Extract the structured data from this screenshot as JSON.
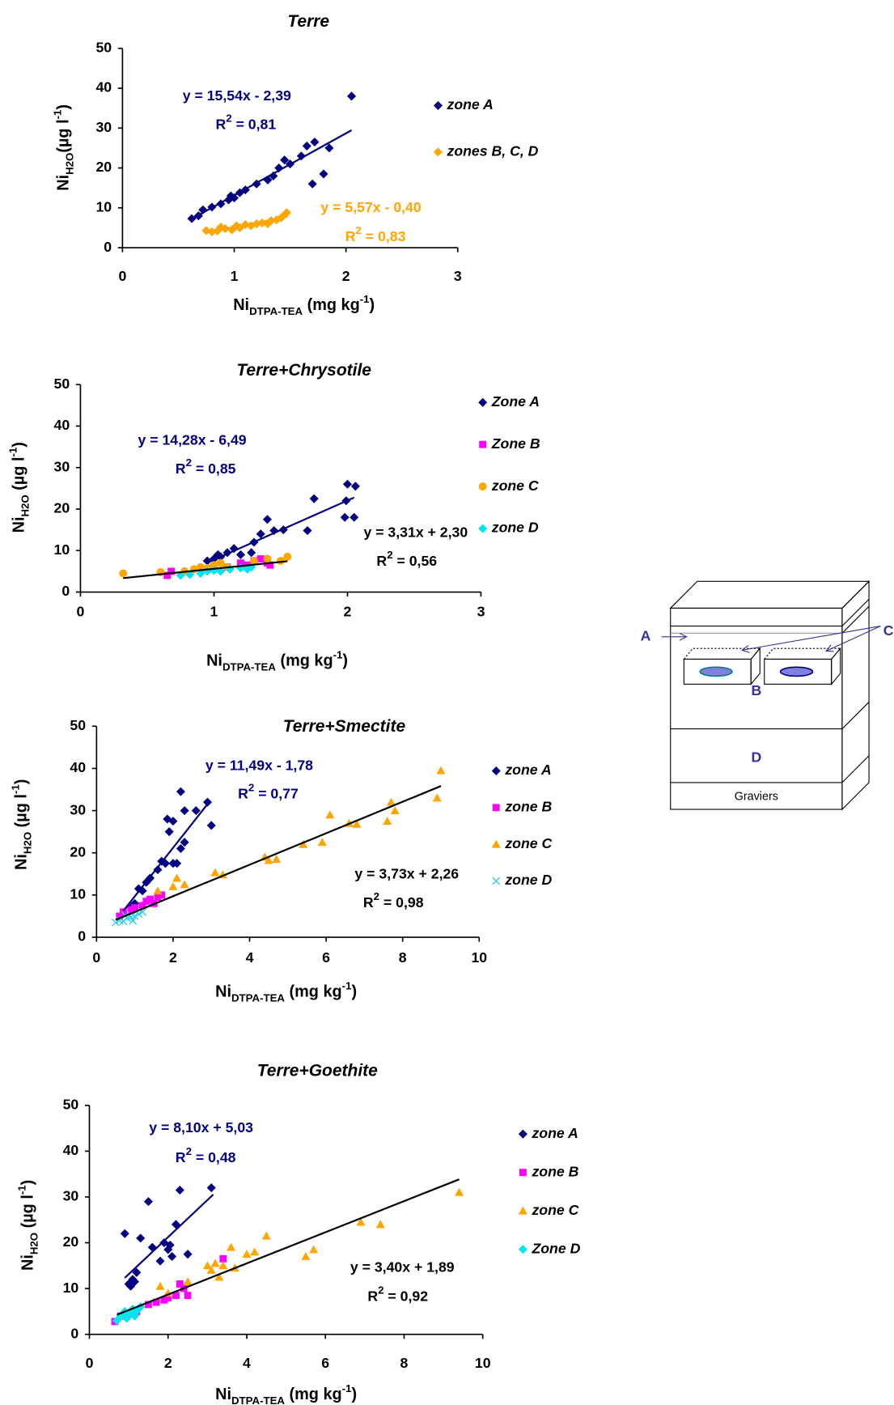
{
  "chart_data": [
    {
      "type": "scatter",
      "title": "Terre",
      "x_label": {
        "main": "Ni",
        "sub": "DTPA-TEA",
        "unit": " (mg kg",
        "sup": "-1",
        "close": ")"
      },
      "y_label": {
        "main": "Ni",
        "sub": "H2O",
        "unit": "(µg l",
        "sup": "-1",
        "close": ")"
      },
      "xlim": [
        0,
        3
      ],
      "xticks": [
        0,
        1,
        2,
        3
      ],
      "ylim": [
        0,
        50
      ],
      "yticks": [
        0,
        10,
        20,
        30,
        40,
        50
      ],
      "legend": "right",
      "series": [
        {
          "name": "zone A",
          "color": "#000080",
          "marker": "diamond",
          "x": [
            0.62,
            0.68,
            0.72,
            0.8,
            0.88,
            0.95,
            0.97,
            1.0,
            1.05,
            1.1,
            1.2,
            1.3,
            1.35,
            1.4,
            1.45,
            1.5,
            1.6,
            1.65,
            1.72,
            1.7,
            1.8,
            1.85,
            2.05
          ],
          "values": [
            7.3,
            8,
            9.5,
            10.2,
            11,
            12,
            13,
            12.5,
            13.8,
            14.5,
            16,
            17,
            18,
            20,
            22,
            21,
            23,
            25.5,
            26.5,
            16,
            18.5,
            25,
            38
          ]
        },
        {
          "name": "zones B, C, D",
          "color": "#FFA500",
          "marker": "diamond",
          "x": [
            0.75,
            0.8,
            0.85,
            0.88,
            0.92,
            0.98,
            1.02,
            1.05,
            1.1,
            1.15,
            1.2,
            1.25,
            1.3,
            1.33,
            1.38,
            1.42,
            1.46,
            1.47
          ],
          "values": [
            4.3,
            4,
            4.2,
            5.2,
            4.8,
            4.5,
            5.5,
            5,
            5.8,
            5.5,
            6,
            6.2,
            6,
            6.8,
            7,
            7.5,
            8.5,
            8.8
          ]
        }
      ],
      "trendlines": [
        {
          "color": "#000080",
          "slope": 15.54,
          "intercept": -2.39,
          "x_range": [
            0.6,
            2.05
          ],
          "equation": "y = 15,54x - 2,39",
          "r2_label": {
            "main": "R",
            "sup": "2",
            "rest": " = 0,81"
          }
        },
        {
          "color": "#FFA500",
          "slope": 5.57,
          "intercept": -0.4,
          "x_range": [
            0.75,
            1.48
          ],
          "equation": "y = 5,57x - 0,40",
          "r2_label": {
            "main": "R",
            "sup": "2",
            "rest": " = 0,83"
          }
        }
      ]
    },
    {
      "type": "scatter",
      "title": "Terre+Chrysotile",
      "x_label": {
        "main": "Ni",
        "sub": "DTPA-TEA",
        "unit": " (mg kg",
        "sup": "-1",
        "close": ")"
      },
      "y_label": {
        "main": "Ni",
        "sub": "H2O",
        "unit": " (µg l",
        "sup": "-1",
        "close": ")"
      },
      "xlim": [
        0,
        3
      ],
      "xticks": [
        0,
        1,
        2,
        3
      ],
      "ylim": [
        0,
        50
      ],
      "yticks": [
        0,
        10,
        20,
        30,
        40,
        50
      ],
      "legend": "right",
      "series": [
        {
          "name": "Zone A",
          "color": "#000080",
          "marker": "diamond",
          "x": [
            0.95,
            1.0,
            1.03,
            1.05,
            1.1,
            1.15,
            1.2,
            1.28,
            1.3,
            1.35,
            1.4,
            1.45,
            1.52,
            1.7,
            1.75,
            1.98,
            1.99,
            2.0,
            2.05,
            2.06
          ],
          "values": [
            7.5,
            8,
            9,
            8.5,
            9.5,
            10.5,
            9,
            9.5,
            12,
            14,
            17.5,
            14.8,
            15,
            14.8,
            22.5,
            18,
            22,
            26,
            18,
            25.5
          ]
        },
        {
          "name": "Zone B",
          "color": "#FF00FF",
          "marker": "square",
          "x": [
            0.65,
            0.68,
            0.95,
            1.1,
            1.2,
            1.25,
            1.3,
            1.35,
            1.4,
            1.42
          ],
          "values": [
            4,
            5,
            5.5,
            6,
            7,
            6.5,
            7.5,
            8,
            7,
            6.5
          ]
        },
        {
          "name": "zone C",
          "color": "#FFA500",
          "marker": "circle",
          "x": [
            0.32,
            0.6,
            0.78,
            0.85,
            0.9,
            0.95,
            1.0,
            1.05,
            1.1,
            1.3,
            1.4,
            1.5,
            1.55
          ],
          "values": [
            4.5,
            4.8,
            5,
            5.5,
            6,
            5.8,
            6.5,
            7,
            6,
            7.5,
            8,
            7.5,
            8.5
          ]
        },
        {
          "name": "zone D",
          "color": "#00E5EE",
          "marker": "diamond",
          "x": [
            0.75,
            0.82,
            0.9,
            0.95,
            1.0,
            1.05,
            1.12,
            1.2,
            1.25,
            1.28
          ],
          "values": [
            4,
            4.2,
            4.5,
            5,
            5.2,
            5,
            5.5,
            5.8,
            5.5,
            6
          ]
        }
      ],
      "trendlines": [
        {
          "color": "#000080",
          "slope": 14.28,
          "intercept": -6.49,
          "x_range": [
            0.95,
            2.05
          ],
          "equation": "y = 14,28x - 6,49",
          "r2_label": {
            "main": "R",
            "sup": "2",
            "rest": " = 0,85"
          }
        },
        {
          "color": "#000000",
          "slope": 3.31,
          "intercept": 2.3,
          "x_range": [
            0.32,
            1.55
          ],
          "equation": "y = 3,31x + 2,30",
          "r2_label": {
            "main": "R",
            "sup": "2",
            "rest": " = 0,56"
          }
        }
      ]
    },
    {
      "type": "scatter",
      "title": "Terre+Smectite",
      "x_label": {
        "main": "Ni",
        "sub": "DTPA-TEA",
        "unit": " (mg kg",
        "sup": "-1",
        "close": ")"
      },
      "y_label": {
        "main": "Ni",
        "sub": "H2O",
        "unit": " (µg l",
        "sup": "-1",
        "close": ")"
      },
      "xlim": [
        0,
        10
      ],
      "xticks": [
        0,
        2,
        4,
        6,
        8,
        10
      ],
      "ylim": [
        0,
        50
      ],
      "yticks": [
        0,
        10,
        20,
        30,
        40,
        50
      ],
      "legend": "right",
      "series": [
        {
          "name": "zone A",
          "color": "#000080",
          "marker": "diamond",
          "x": [
            0.9,
            1.0,
            1.1,
            1.2,
            1.3,
            1.4,
            1.6,
            1.7,
            1.8,
            1.85,
            1.9,
            2.0,
            2.0,
            2.1,
            2.2,
            2.2,
            2.3,
            2.3,
            2.6,
            2.9,
            3.0
          ],
          "values": [
            7,
            8,
            11.5,
            11,
            13,
            14,
            16,
            18,
            17.5,
            28,
            25,
            27.5,
            17.5,
            17.5,
            34.5,
            21,
            22.5,
            30,
            30,
            32,
            26.5
          ]
        },
        {
          "name": "zone B",
          "color": "#FF00FF",
          "marker": "square",
          "x": [
            0.6,
            0.7,
            0.9,
            1.0,
            1.2,
            1.3,
            1.4,
            1.5,
            1.6,
            1.7
          ],
          "values": [
            5,
            6,
            6.5,
            7,
            7.5,
            8.5,
            9,
            8,
            9.5,
            10
          ]
        },
        {
          "name": "zone C",
          "color": "#FFA500",
          "marker": "triangle",
          "x": [
            1.6,
            2.0,
            2.1,
            2.3,
            3.1,
            3.3,
            4.4,
            4.5,
            4.7,
            5.4,
            5.9,
            6.1,
            6.6,
            6.8,
            7.6,
            7.7,
            7.8,
            8.9,
            9.0
          ],
          "values": [
            11,
            12,
            14,
            12.5,
            15.3,
            14.8,
            19,
            18.2,
            18.5,
            22,
            22.5,
            29,
            27,
            26.8,
            27.5,
            32,
            30,
            33,
            39.5
          ]
        },
        {
          "name": "zone D",
          "color": "#33CCEE",
          "marker": "x",
          "x": [
            0.5,
            0.6,
            0.7,
            0.8,
            0.9,
            1.0,
            1.1,
            1.2,
            0.75,
            0.95
          ],
          "values": [
            3.5,
            4,
            3.8,
            4.5,
            4.8,
            5,
            5.5,
            6,
            5.2,
            3.9
          ]
        }
      ],
      "trendlines": [
        {
          "color": "#000080",
          "slope": 11.49,
          "intercept": -1.78,
          "x_range": [
            0.7,
            2.95
          ],
          "equation": "y = 11,49x - 1,78",
          "r2_label": {
            "main": "R",
            "sup": "2",
            "rest": " = 0,77"
          }
        },
        {
          "color": "#000000",
          "slope": 3.73,
          "intercept": 2.26,
          "x_range": [
            0.5,
            9.0
          ],
          "equation": "y = 3,73x + 2,26",
          "r2_label": {
            "main": "R",
            "sup": "2",
            "rest": " = 0,98"
          }
        }
      ]
    },
    {
      "type": "scatter",
      "title": "Terre+Goethite",
      "x_label": {
        "main": "Ni",
        "sub": "DTPA-TEA",
        "unit": " (mg kg",
        "sup": "-1",
        "close": ")"
      },
      "y_label": {
        "main": "Ni",
        "sub": "H2O",
        "unit": " (µg l",
        "sup": "-1",
        "close": ")"
      },
      "xlim": [
        0,
        10
      ],
      "xticks": [
        0,
        2,
        4,
        6,
        8,
        10
      ],
      "ylim": [
        0,
        50
      ],
      "yticks": [
        0,
        10,
        20,
        30,
        40,
        50
      ],
      "legend": "right",
      "series": [
        {
          "name": "zone A",
          "color": "#000080",
          "marker": "diamond",
          "x": [
            0.9,
            1.0,
            1.05,
            1.1,
            1.15,
            1.2,
            1.3,
            1.5,
            1.6,
            1.8,
            1.9,
            2.0,
            2.05,
            2.1,
            2.2,
            2.3,
            2.5,
            3.1
          ],
          "values": [
            22,
            11,
            10.5,
            12,
            11.5,
            13.5,
            21,
            29,
            19,
            16,
            20,
            18.5,
            19.5,
            17,
            24,
            31.5,
            17.5,
            32
          ]
        },
        {
          "name": "zone B",
          "color": "#FF00FF",
          "marker": "square",
          "x": [
            0.65,
            0.8,
            1.0,
            1.2,
            1.5,
            1.7,
            1.9,
            2.0,
            2.2,
            2.3,
            2.4,
            2.5,
            3.4
          ],
          "values": [
            2.8,
            4,
            4.5,
            5,
            6.5,
            7,
            7.5,
            8,
            8.5,
            11,
            10,
            8.5,
            16.5
          ]
        },
        {
          "name": "zone C",
          "color": "#FFA500",
          "marker": "triangle",
          "x": [
            1.8,
            2.0,
            2.5,
            3.0,
            3.1,
            3.2,
            3.3,
            3.4,
            3.6,
            3.7,
            4.0,
            4.2,
            4.5,
            5.5,
            5.7,
            6.9,
            7.4,
            9.4
          ],
          "values": [
            10.5,
            9,
            11.5,
            15,
            14,
            15.5,
            12.5,
            15,
            19,
            14.5,
            17.5,
            18,
            21.5,
            17,
            18.5,
            24.5,
            24,
            31
          ]
        },
        {
          "name": "Zone D",
          "color": "#00E5EE",
          "marker": "diamond",
          "x": [
            0.7,
            0.8,
            0.9,
            1.0,
            1.1,
            1.2,
            1.3,
            0.95,
            1.15
          ],
          "values": [
            3,
            4,
            5,
            4.5,
            5.5,
            5,
            6,
            3.5,
            4
          ]
        }
      ],
      "trendlines": [
        {
          "color": "#000080",
          "slope": 8.1,
          "intercept": 5.03,
          "x_range": [
            0.9,
            3.15
          ],
          "equation": "y = 8,10x + 5,03",
          "r2_label": {
            "main": "R",
            "sup": "2",
            "rest": " = 0,48"
          }
        },
        {
          "color": "#000000",
          "slope": 3.4,
          "intercept": 1.89,
          "x_range": [
            0.7,
            9.4
          ],
          "equation": "y = 3,40x + 1,89",
          "r2_label": {
            "main": "R",
            "sup": "2",
            "rest": " = 0,92"
          }
        }
      ]
    }
  ],
  "diagram": {
    "label_a": "A",
    "label_b": "B",
    "label_c": "C",
    "label_d": "D",
    "base": "Graviers"
  }
}
